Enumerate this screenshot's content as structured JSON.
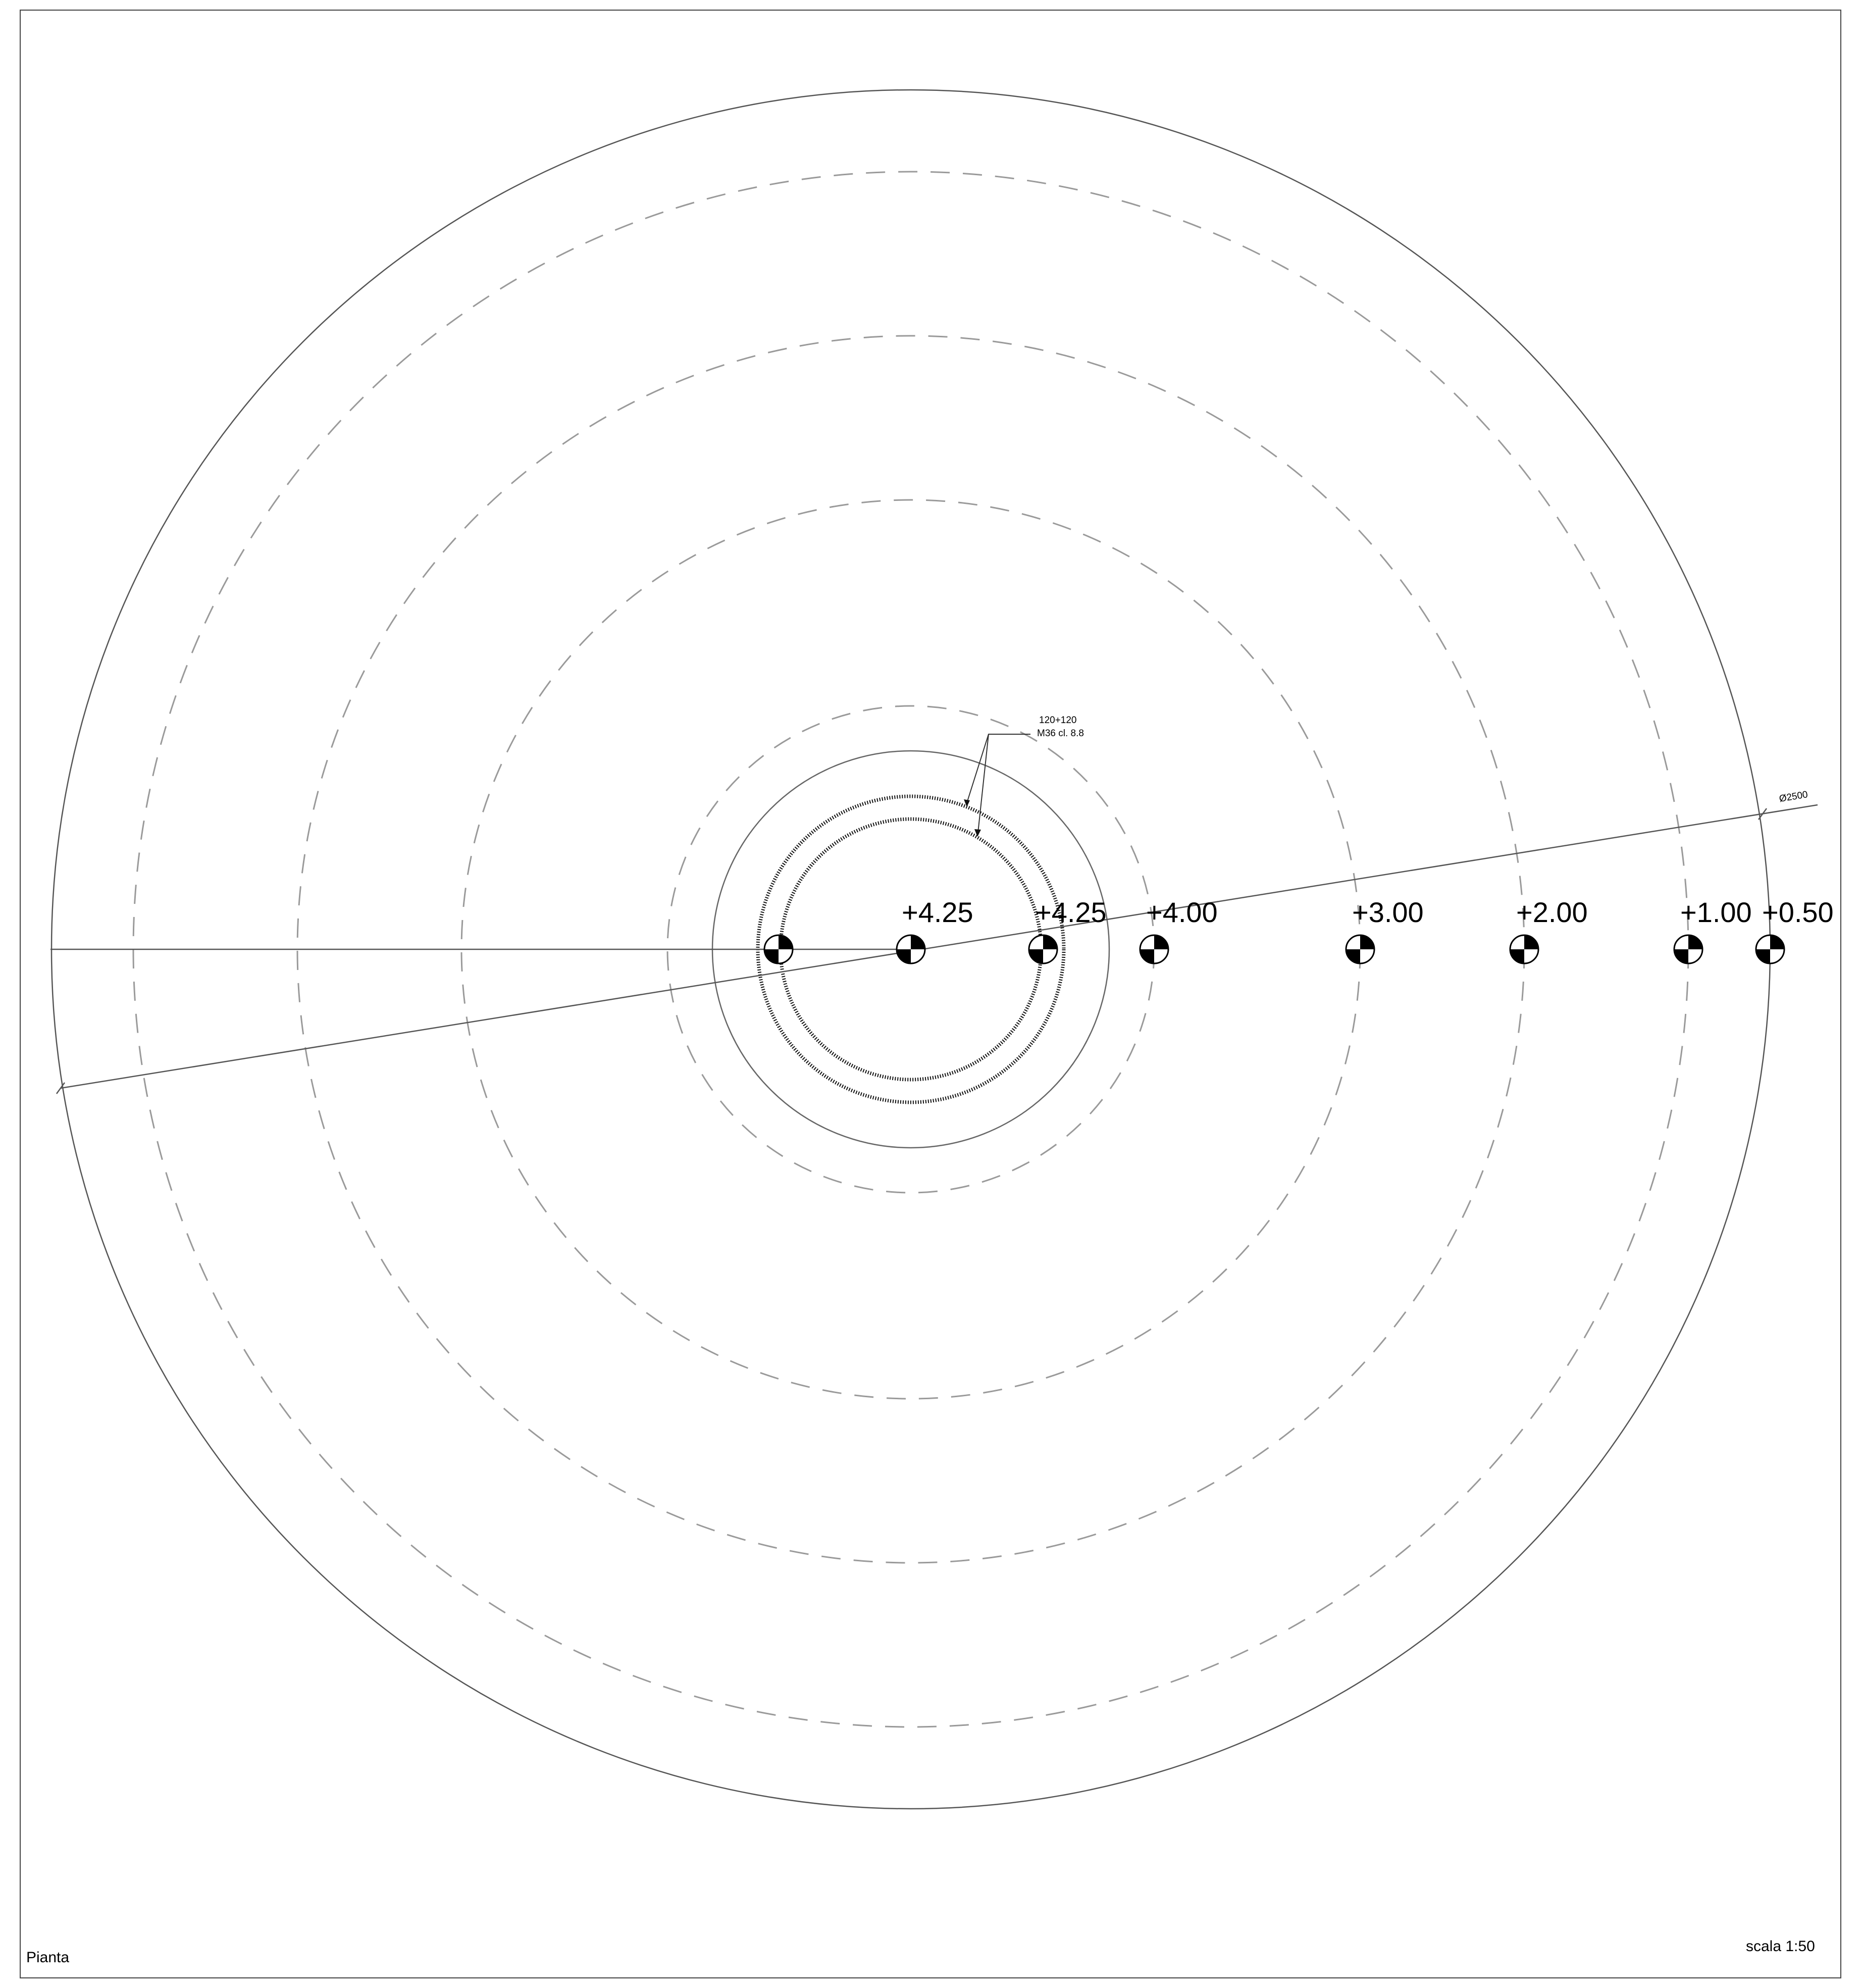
{
  "view_label": "Pianta",
  "scale_label": "scala 1:50",
  "diameter_label": "Ø2500",
  "bolt_note": [
    "120+120",
    "M36 cl. 8.8"
  ],
  "levels": [
    {
      "label": "+4.25"
    },
    {
      "label": "+4.25"
    },
    {
      "label": "+4.00"
    },
    {
      "label": "+3.00"
    },
    {
      "label": "+2.00"
    },
    {
      "label": "+1.00"
    },
    {
      "label": "+0.50"
    }
  ]
}
